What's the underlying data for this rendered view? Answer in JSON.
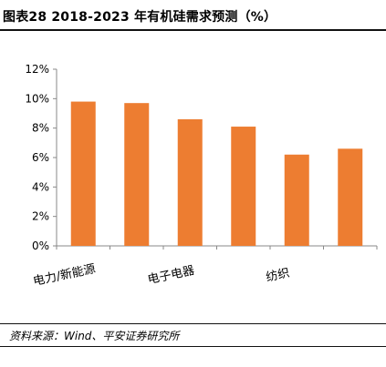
{
  "header": {
    "title": "图表28   2018-2023 年有机硅需求预测（%）"
  },
  "footer": {
    "source": "资料来源：Wind、平安证券研究所"
  },
  "chart_data": {
    "type": "bar",
    "categories": [
      "电力/新能源",
      "",
      "电子电器",
      "",
      "纺织",
      ""
    ],
    "values": [
      9.8,
      9.7,
      8.6,
      8.1,
      6.2,
      6.6
    ],
    "ylim": [
      0,
      12
    ],
    "yticks": [
      0,
      2,
      4,
      6,
      8,
      10,
      12
    ],
    "ytick_labels": [
      "0%",
      "2%",
      "4%",
      "6%",
      "8%",
      "10%",
      "12%"
    ],
    "grid": false,
    "bar_color": "#ED7D31",
    "axis_color": "#898989"
  }
}
